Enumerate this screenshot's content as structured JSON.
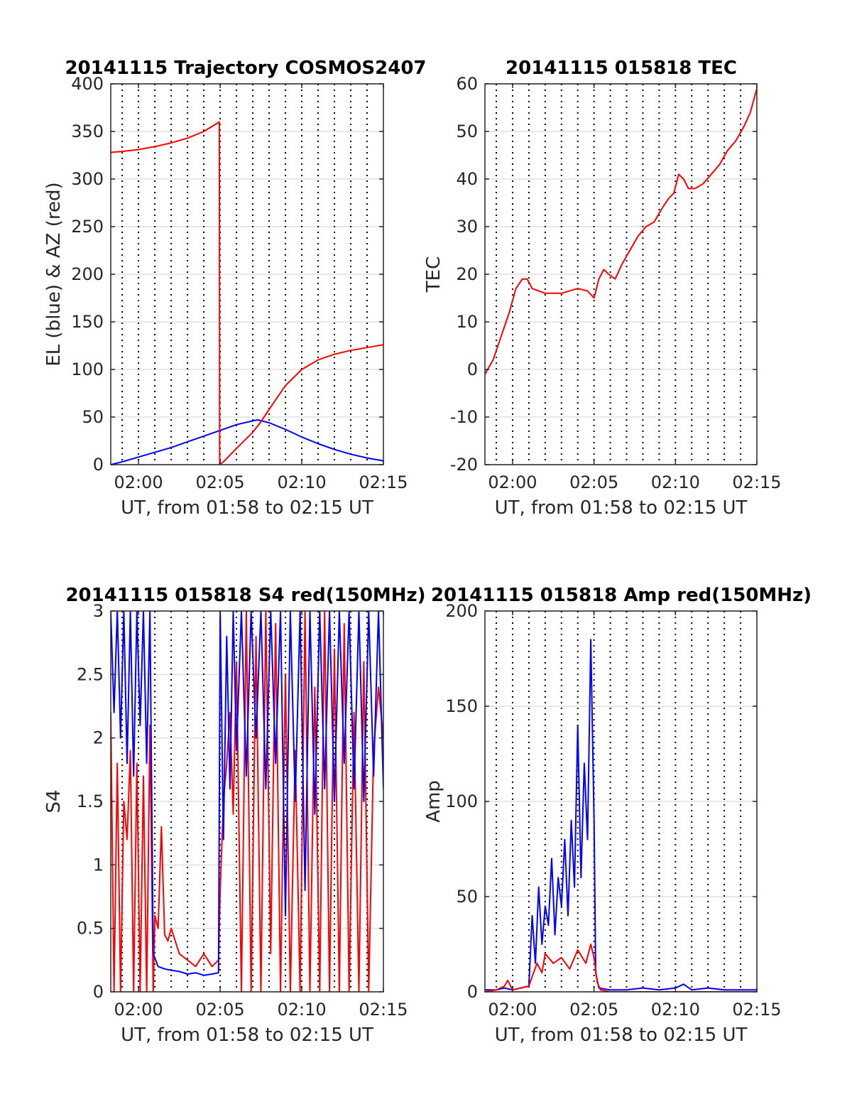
{
  "colors": {
    "el": "#0000ff",
    "az": "#ff0000",
    "grid": "#e0e0e0",
    "vline": "#000000",
    "axis": "#262626"
  },
  "chart_data": [
    {
      "id": "trajectory",
      "type": "line",
      "title": "20141115 Trajectory COSMOS2407",
      "xlabel": "UT, from 01:58 to 02:15 UT",
      "ylabel": "EL (blue) & AZ (red)",
      "xlim": [
        118.3,
        135
      ],
      "ylim": [
        0,
        400
      ],
      "xticks": [
        120,
        125,
        130,
        135
      ],
      "xtick_labels": [
        "02:00",
        "02:05",
        "02:10",
        "02:15"
      ],
      "yticks": [
        0,
        50,
        100,
        150,
        200,
        250,
        300,
        350,
        400
      ],
      "ytick_labels": [
        "0",
        "50",
        "100",
        "150",
        "200",
        "250",
        "300",
        "350",
        "400"
      ],
      "grid": true,
      "series": [
        {
          "color": "blue",
          "x": [
            118.3,
            119,
            120,
            121,
            122,
            123,
            124,
            125,
            126,
            127,
            127.3,
            128,
            129,
            130,
            131,
            132,
            133,
            134,
            135
          ],
          "y": [
            0,
            3,
            8,
            13,
            18,
            24,
            30,
            36,
            42,
            46,
            47,
            44,
            37,
            29,
            22,
            16,
            11,
            7,
            4
          ]
        },
        {
          "color": "red",
          "x": [
            118.3,
            119,
            120,
            121,
            122,
            123,
            124,
            124.95,
            124.97,
            125.2,
            126,
            127,
            127.5,
            128,
            129,
            130,
            131,
            132,
            133,
            134,
            135
          ],
          "y": [
            328,
            329,
            331,
            334,
            338,
            343,
            350,
            360,
            0,
            3,
            17,
            34,
            45,
            58,
            83,
            100,
            110,
            116,
            120,
            123,
            126
          ]
        }
      ]
    },
    {
      "id": "tec",
      "type": "line",
      "title": "20141115 015818 TEC",
      "xlabel": "UT, from 01:58 to 02:15 UT",
      "ylabel": "TEC",
      "xlim": [
        118.3,
        135
      ],
      "ylim": [
        -20,
        60
      ],
      "xticks": [
        120,
        125,
        130,
        135
      ],
      "xtick_labels": [
        "02:00",
        "02:05",
        "02:10",
        "02:15"
      ],
      "yticks": [
        -20,
        -10,
        0,
        10,
        20,
        30,
        40,
        50,
        60
      ],
      "ytick_labels": [
        "-20",
        "-10",
        "0",
        "10",
        "20",
        "30",
        "40",
        "50",
        "60"
      ],
      "grid": true,
      "series": [
        {
          "color": "red",
          "x": [
            118.3,
            118.8,
            119.3,
            119.8,
            120.2,
            120.6,
            120.9,
            121.2,
            121.6,
            122,
            123,
            124,
            124.6,
            125,
            125.3,
            125.6,
            125.9,
            126.3,
            126.7,
            127.2,
            127.7,
            128.2,
            128.7,
            129.2,
            129.6,
            129.9,
            130.2,
            130.5,
            130.8,
            131.2,
            131.7,
            132.2,
            132.7,
            133.2,
            133.7,
            134.2,
            134.6,
            135
          ],
          "y": [
            -1,
            2,
            7,
            12,
            17,
            19,
            19,
            17,
            16.5,
            16,
            16,
            17,
            16.5,
            15,
            19,
            21,
            20,
            19,
            22,
            25,
            28,
            30,
            31,
            34,
            36,
            37,
            41,
            40,
            38,
            38,
            39,
            41,
            43,
            46,
            48,
            51,
            54,
            59
          ]
        }
      ]
    },
    {
      "id": "s4",
      "type": "line",
      "title": "20141115 015818 S4 red(150MHz)",
      "xlabel": "UT, from 01:58 to 02:15 UT",
      "ylabel": "S4",
      "xlim": [
        118.3,
        135
      ],
      "ylim": [
        0,
        3
      ],
      "xticks": [
        120,
        125,
        130,
        135
      ],
      "xtick_labels": [
        "02:00",
        "02:05",
        "02:10",
        "02:15"
      ],
      "yticks": [
        0,
        0.5,
        1,
        1.5,
        2,
        2.5,
        3
      ],
      "ytick_labels": [
        "0",
        "0.5",
        "1",
        "1.5",
        "2",
        "2.5",
        "3"
      ],
      "grid": true,
      "series": [
        {
          "color": "red",
          "x": [
            118.3,
            118.5,
            118.7,
            118.9,
            119.1,
            119.3,
            119.5,
            119.7,
            119.9,
            120.1,
            120.3,
            120.5,
            120.7,
            120.9,
            121,
            121.2,
            121.4,
            121.6,
            121.8,
            122,
            122.5,
            123,
            123.5,
            124,
            124.5,
            124.9,
            125,
            125.2,
            125.4,
            125.6,
            125.8,
            126,
            126.3,
            126.6,
            126.9,
            127.2,
            127.5,
            127.8,
            128.1,
            128.4,
            128.7,
            129,
            129.3,
            129.6,
            129.9,
            130.2,
            130.5,
            130.8,
            131.1,
            131.4,
            131.7,
            132,
            132.3,
            132.6,
            132.9,
            133.2,
            133.5,
            133.8,
            134.1,
            134.4,
            134.7,
            135
          ],
          "y": [
            2.2,
            0,
            1.8,
            0,
            1.5,
            1.2,
            1.9,
            0,
            1.8,
            0,
            1.7,
            0,
            2.1,
            0,
            0.6,
            0.5,
            1.3,
            0.45,
            0.4,
            0.5,
            0.3,
            0.25,
            0.2,
            0.3,
            0.2,
            0.25,
            0.8,
            1.5,
            1.8,
            2.2,
            1.4,
            2.6,
            0,
            3,
            0,
            2.8,
            0,
            3,
            0.3,
            2.9,
            0,
            2.5,
            0,
            1.9,
            0,
            3,
            0,
            2.4,
            0,
            3,
            0,
            2.7,
            0,
            2.9,
            0,
            2.2,
            0,
            2.6,
            0,
            1.9,
            2.4,
            2.0
          ]
        },
        {
          "color": "blue",
          "x": [
            118.3,
            118.5,
            118.7,
            118.9,
            119.1,
            119.3,
            119.5,
            119.7,
            119.9,
            120.1,
            120.3,
            120.5,
            120.7,
            120.9,
            121.2,
            121.6,
            122,
            122.5,
            123,
            123.5,
            124,
            124.5,
            124.9,
            125,
            125.2,
            125.4,
            125.6,
            125.8,
            126,
            126.3,
            126.6,
            126.9,
            127.2,
            127.5,
            127.8,
            128.1,
            128.4,
            128.7,
            129,
            129.3,
            129.6,
            129.9,
            130.2,
            130.5,
            130.8,
            131.1,
            131.4,
            131.7,
            132,
            132.3,
            132.6,
            132.9,
            133.2,
            133.5,
            133.8,
            134.1,
            134.4,
            134.7,
            135
          ],
          "y": [
            3,
            2.2,
            3,
            2.0,
            3,
            1.8,
            3,
            1.7,
            3,
            2.1,
            3,
            1.8,
            3,
            0.3,
            0.2,
            0.18,
            0.17,
            0.16,
            0.14,
            0.15,
            0.13,
            0.14,
            0.15,
            3,
            1.2,
            2.8,
            1.6,
            3,
            1.9,
            3,
            1.7,
            3,
            2.0,
            3,
            1.6,
            3,
            1.8,
            3,
            0.6,
            3,
            1.5,
            3,
            0.8,
            3,
            1.4,
            3,
            1.6,
            3,
            1.5,
            3,
            1.8,
            3,
            1.6,
            3,
            1.5,
            3,
            1.7,
            3,
            1.6
          ]
        }
      ]
    },
    {
      "id": "amp",
      "type": "line",
      "title": "20141115 015818 Amp red(150MHz)",
      "xlabel": "UT, from 01:58 to 02:15 UT",
      "ylabel": "Amp",
      "xlim": [
        118.3,
        135
      ],
      "ylim": [
        0,
        200
      ],
      "xticks": [
        120,
        125,
        130,
        135
      ],
      "xtick_labels": [
        "02:00",
        "02:05",
        "02:10",
        "02:15"
      ],
      "yticks": [
        0,
        50,
        100,
        150,
        200
      ],
      "ytick_labels": [
        "0",
        "50",
        "100",
        "150",
        "200"
      ],
      "grid": true,
      "series": [
        {
          "color": "blue",
          "x": [
            118.3,
            119,
            119.5,
            120,
            120.5,
            121,
            121.2,
            121.4,
            121.6,
            121.8,
            122,
            122.2,
            122.4,
            122.6,
            122.8,
            123,
            123.2,
            123.4,
            123.6,
            123.8,
            124,
            124.2,
            124.4,
            124.6,
            124.8,
            125,
            125.1,
            125.3,
            126,
            127,
            128,
            129,
            130,
            130.5,
            131,
            132,
            133,
            134,
            135
          ],
          "y": [
            1,
            1,
            2,
            1,
            2,
            3,
            40,
            15,
            55,
            25,
            45,
            35,
            70,
            30,
            60,
            45,
            80,
            40,
            90,
            55,
            140,
            60,
            120,
            80,
            185,
            90,
            10,
            2,
            1,
            1,
            2,
            1,
            2,
            4,
            1,
            2,
            1,
            1,
            1
          ]
        },
        {
          "color": "red",
          "x": [
            118.3,
            119,
            119.5,
            119.7,
            120,
            120.5,
            121,
            121.2,
            121.5,
            121.8,
            122,
            122.5,
            123,
            123.5,
            124,
            124.5,
            124.8,
            125,
            125.2,
            125.4,
            126,
            130,
            135
          ],
          "y": [
            0,
            1,
            3,
            6,
            1,
            2,
            3,
            8,
            15,
            10,
            20,
            15,
            18,
            12,
            22,
            15,
            25,
            18,
            5,
            1,
            0,
            0,
            0
          ]
        }
      ]
    }
  ]
}
